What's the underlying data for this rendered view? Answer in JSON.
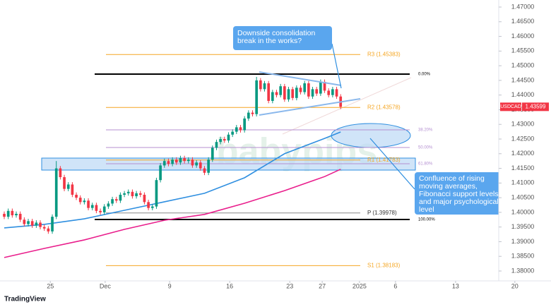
{
  "chart_data": {
    "type": "candlestick",
    "symbol": "USDCAD",
    "last_price": 1.43599,
    "colors": {
      "up": "#089981",
      "down": "#f23645"
    },
    "open": [
      1.3995,
      1.3985,
      1.4005,
      1.399,
      1.3995,
      1.3975,
      1.396,
      1.397,
      1.3955,
      1.3965,
      1.395,
      1.3945,
      1.3935,
      1.3985,
      1.415,
      1.412,
      1.408,
      1.4095,
      1.406,
      1.405,
      1.4035,
      1.404,
      1.4015,
      1.4025,
      1.4005,
      1.4,
      1.402,
      1.403,
      1.4045,
      1.404,
      1.406,
      1.4065,
      1.407,
      1.4055,
      1.4065,
      1.406,
      1.4035,
      1.4015,
      1.402,
      1.411,
      1.416,
      1.4175,
      1.4165,
      1.418,
      1.417,
      1.4185,
      1.4175,
      1.418,
      1.416,
      1.417,
      1.415,
      1.4135,
      1.418,
      1.422,
      1.424,
      1.425,
      1.4245,
      1.4265,
      1.4275,
      1.429,
      1.428,
      1.432,
      1.434,
      1.4335,
      1.445,
      1.442,
      1.444,
      1.438,
      1.441,
      1.44,
      1.443,
      1.4385,
      1.442,
      1.439,
      1.4425,
      1.441,
      1.444,
      1.4395,
      1.442,
      1.4405,
      1.4445,
      1.4415,
      1.44,
      1.442,
      1.4395
    ],
    "high": [
      1.4003,
      1.4013,
      1.4013,
      1.4003,
      1.4003,
      1.3983,
      1.3978,
      1.3978,
      1.3973,
      1.3973,
      1.3958,
      1.3953,
      1.3993,
      1.4175,
      1.4158,
      1.4128,
      1.4103,
      1.4103,
      1.4068,
      1.4058,
      1.4048,
      1.4048,
      1.4033,
      1.4033,
      1.4013,
      1.4028,
      1.4038,
      1.4053,
      1.4053,
      1.4068,
      1.4073,
      1.4078,
      1.4078,
      1.4073,
      1.4073,
      1.4068,
      1.4043,
      1.4028,
      1.4118,
      1.4168,
      1.4183,
      1.4183,
      1.4188,
      1.4188,
      1.4193,
      1.4193,
      1.4188,
      1.4188,
      1.4178,
      1.4178,
      1.4158,
      1.4188,
      1.4228,
      1.4248,
      1.4258,
      1.4258,
      1.4273,
      1.4283,
      1.4298,
      1.4298,
      1.4328,
      1.4348,
      1.4348,
      1.4462,
      1.4458,
      1.4448,
      1.4448,
      1.4418,
      1.4418,
      1.4438,
      1.4438,
      1.4428,
      1.4428,
      1.4433,
      1.4433,
      1.4448,
      1.4448,
      1.4428,
      1.4428,
      1.4453,
      1.4453,
      1.4423,
      1.4428,
      1.4428,
      1.4403
    ],
    "low": [
      1.3977,
      1.3977,
      1.3982,
      1.3982,
      1.3967,
      1.3952,
      1.3952,
      1.3947,
      1.3947,
      1.3942,
      1.3937,
      1.3927,
      1.3927,
      1.3977,
      1.4112,
      1.4072,
      1.4072,
      1.4052,
      1.4042,
      1.4027,
      1.4027,
      1.4007,
      1.4007,
      1.3997,
      1.3992,
      1.3992,
      1.4012,
      1.4022,
      1.4032,
      1.4032,
      1.4052,
      1.4057,
      1.4047,
      1.4047,
      1.4052,
      1.4027,
      1.4007,
      1.4007,
      1.4012,
      1.4102,
      1.4152,
      1.4157,
      1.4157,
      1.4162,
      1.4162,
      1.4167,
      1.4167,
      1.4152,
      1.4152,
      1.4142,
      1.4127,
      1.4127,
      1.4172,
      1.4212,
      1.4232,
      1.4237,
      1.4237,
      1.4257,
      1.4267,
      1.4272,
      1.4272,
      1.4312,
      1.4327,
      1.4327,
      1.4412,
      1.4412,
      1.4372,
      1.4372,
      1.4392,
      1.4392,
      1.4377,
      1.4377,
      1.4382,
      1.4382,
      1.4402,
      1.4402,
      1.4387,
      1.4387,
      1.4397,
      1.4397,
      1.4407,
      1.4392,
      1.4392,
      1.4387,
      1.4352
    ],
    "close": [
      1.3985,
      1.4005,
      1.399,
      1.3995,
      1.3975,
      1.396,
      1.397,
      1.3955,
      1.3965,
      1.395,
      1.3945,
      1.3935,
      1.3985,
      1.415,
      1.412,
      1.408,
      1.4095,
      1.406,
      1.405,
      1.4035,
      1.404,
      1.4015,
      1.4025,
      1.4005,
      1.4,
      1.402,
      1.403,
      1.4045,
      1.404,
      1.406,
      1.4065,
      1.407,
      1.4055,
      1.4065,
      1.406,
      1.4035,
      1.4015,
      1.402,
      1.411,
      1.416,
      1.4175,
      1.4165,
      1.418,
      1.417,
      1.4185,
      1.4175,
      1.418,
      1.416,
      1.417,
      1.415,
      1.4135,
      1.418,
      1.422,
      1.424,
      1.425,
      1.4245,
      1.4265,
      1.4275,
      1.429,
      1.428,
      1.432,
      1.434,
      1.4335,
      1.445,
      1.442,
      1.444,
      1.438,
      1.441,
      1.44,
      1.443,
      1.4385,
      1.442,
      1.439,
      1.4425,
      1.441,
      1.444,
      1.4395,
      1.442,
      1.4405,
      1.4445,
      1.4415,
      1.44,
      1.442,
      1.4395,
      1.436
    ],
    "moving_averages": [
      {
        "color": "#2f8fe0",
        "x": [
          0,
          10,
          20,
          30,
          40,
          50,
          60,
          70,
          80,
          84
        ],
        "values": [
          1.3947,
          1.3959,
          1.3978,
          1.4007,
          1.4036,
          1.4065,
          1.4118,
          1.42,
          1.4252,
          1.4274
        ]
      },
      {
        "color": "#e91e8c",
        "x": [
          0,
          10,
          20,
          30,
          40,
          50,
          60,
          70,
          80,
          84
        ],
        "values": [
          1.3846,
          1.3877,
          1.3906,
          1.3942,
          1.3973,
          1.3993,
          1.4031,
          1.4074,
          1.4122,
          1.4147
        ]
      }
    ],
    "pivots": [
      {
        "label": "R3 (1.45383)",
        "value": 1.45383
      },
      {
        "label": "R2 (1.43578)",
        "value": 1.43578
      },
      {
        "label": "R1 (1.41783)",
        "value": 1.41783
      },
      {
        "label": "P (1.39978)",
        "value": 1.39978
      },
      {
        "label": "S1 (1.38183)",
        "value": 1.38183
      }
    ],
    "pivot_color": "#f5a623",
    "fib_levels": [
      {
        "label": "0.00%",
        "value": 1.44714,
        "color": "#000000"
      },
      {
        "label": "38.20%",
        "value": 1.42813,
        "color": "#b48fd1"
      },
      {
        "label": "50.00%",
        "value": 1.42211,
        "color": "#b48fd1"
      },
      {
        "label": "61.80%",
        "value": 1.41658,
        "color": "#b48fd1"
      },
      {
        "label": "100.00%",
        "value": 1.39757,
        "color": "#000000"
      }
    ],
    "xlim": [
      -1.06,
      133
    ],
    "xticks": [
      {
        "value": 11.5,
        "label": "25"
      },
      {
        "value": 25.2,
        "label": "Dec"
      },
      {
        "value": 41.3,
        "label": "9"
      },
      {
        "value": 56.3,
        "label": "16"
      },
      {
        "value": 71.3,
        "label": "23"
      },
      {
        "value": 79.4,
        "label": "27"
      },
      {
        "value": 88.7,
        "label": "2025"
      },
      {
        "value": 97.7,
        "label": "6"
      },
      {
        "value": 112.7,
        "label": "13"
      },
      {
        "value": 127.5,
        "label": "20"
      }
    ],
    "ylim": [
      1.37663,
      1.47241
    ],
    "yticks": [
      {
        "value": 1.38,
        "label": "1.38000"
      },
      {
        "value": 1.385,
        "label": "1.38500"
      },
      {
        "value": 1.39,
        "label": "1.39000"
      },
      {
        "value": 1.395,
        "label": "1.39500"
      },
      {
        "value": 1.4,
        "label": "1.40000"
      },
      {
        "value": 1.405,
        "label": "1.40500"
      },
      {
        "value": 1.41,
        "label": "1.41000"
      },
      {
        "value": 1.415,
        "label": "1.41500"
      },
      {
        "value": 1.42,
        "label": "1.42000"
      },
      {
        "value": 1.425,
        "label": "1.42500"
      },
      {
        "value": 1.43,
        "label": "1.43000"
      },
      {
        "value": 1.435,
        "label": "1.43500"
      },
      {
        "value": 1.44,
        "label": "1.44000"
      },
      {
        "value": 1.445,
        "label": "1.44500"
      },
      {
        "value": 1.45,
        "label": "1.45000"
      },
      {
        "value": 1.455,
        "label": "1.45500"
      },
      {
        "value": 1.46,
        "label": "1.46000"
      },
      {
        "value": 1.465,
        "label": "1.46500"
      },
      {
        "value": 1.47,
        "label": "1.47000"
      }
    ],
    "annotations": [
      [
        "Downside consolidation",
        "break in the works?"
      ],
      [
        "Confluence of rising",
        "moving averages,",
        "Fibonacci support levels",
        "and major psychological",
        "level"
      ]
    ],
    "watermark": "babypips",
    "footer": "TradingView"
  }
}
